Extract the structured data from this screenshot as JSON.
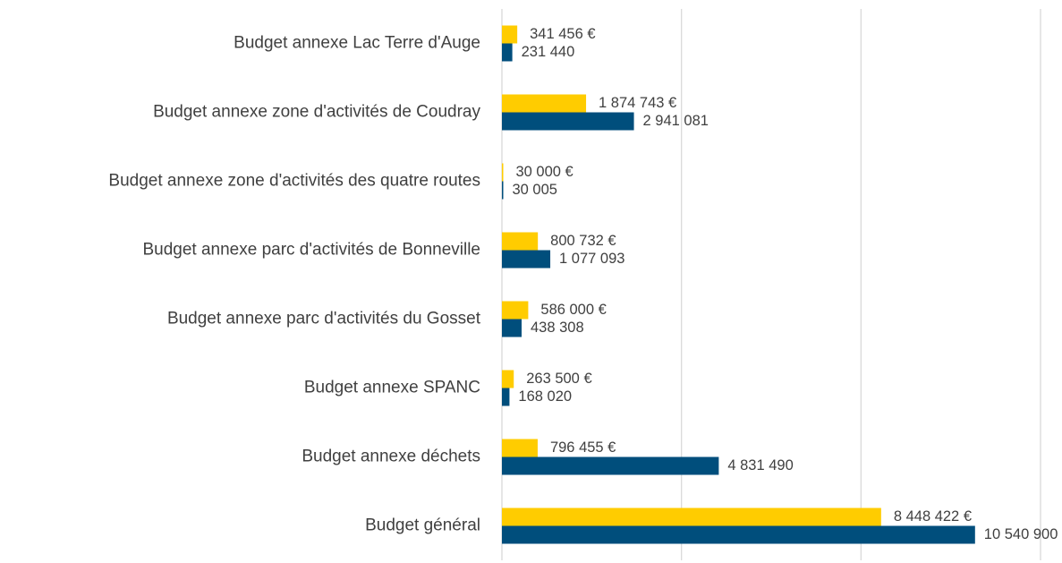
{
  "chart_data": {
    "type": "bar",
    "orientation": "horizontal",
    "categories": [
      "Budget annexe Lac Terre d'Auge",
      "Budget annexe zone d'activités de Coudray",
      "Budget annexe zone d'activités des quatre routes",
      "Budget annexe parc d'activités de Bonneville",
      "Budget annexe parc d'activités du Gosset",
      "Budget annexe SPANC",
      "Budget annexe déchets",
      "Budget général"
    ],
    "series": [
      {
        "color": "#ffcc00",
        "values": [
          341456,
          1874743,
          30000,
          800732,
          586000,
          263500,
          796455,
          8448422
        ],
        "value_labels": [
          "341 456 €",
          "1 874 743 €",
          "30 000 €",
          "800 732 €",
          "586 000 €",
          "263 500 €",
          "796 455 €",
          "8 448 422 €"
        ]
      },
      {
        "color": "#004e7c",
        "values": [
          231440,
          2941081,
          30005,
          1077093,
          438308,
          168020,
          4831490,
          10540900
        ],
        "value_labels": [
          "231 440",
          "2 941 081",
          "30 005",
          "1 077 093",
          "438 308",
          "168 020",
          "4 831 490",
          "10 540 900"
        ]
      }
    ],
    "xlim": [
      0,
      12000000
    ],
    "xticks": [
      0,
      4000000,
      8000000,
      12000000
    ],
    "grid": true
  }
}
